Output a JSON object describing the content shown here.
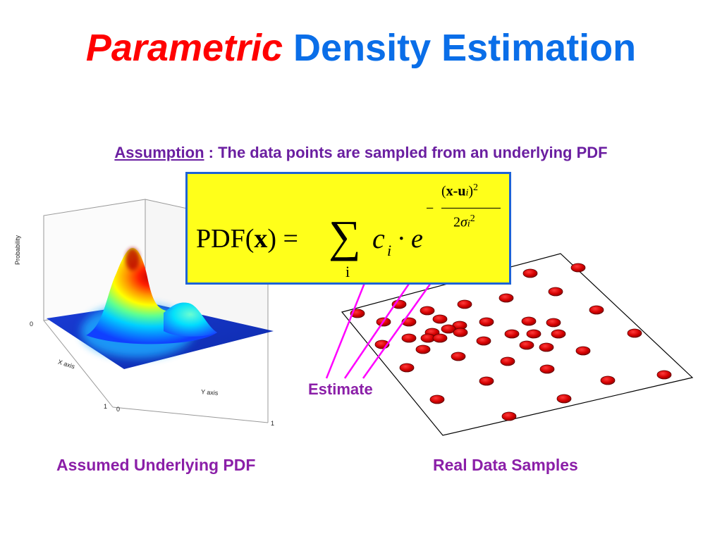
{
  "title": {
    "word1": "Parametric",
    "word2": "Density Estimation"
  },
  "assumption": {
    "label": "Assumption",
    "text": " : The data points are sampled from an underlying PDF"
  },
  "formula": {
    "lhs_pdf": "PDF(",
    "lhs_x": "x",
    "lhs_close": ") =",
    "sum_symbol": "∑",
    "sum_index": "i",
    "coef": "c",
    "coef_sub": "i",
    "dot_e": "· e",
    "exp_minus": "−",
    "exp_num_open": "(",
    "exp_num_x": "x-u",
    "exp_num_sub": "i",
    "exp_num_close": ")",
    "exp_num_pow": "2",
    "exp_den_two": "2",
    "exp_den_sigma": "σ",
    "exp_den_sub": "i",
    "exp_den_pow": "2"
  },
  "plot3d": {
    "z_axis_label": "Probability",
    "x_axis_label": "X axis",
    "y_axis_label": "Y axis",
    "tick_z0": "0",
    "tick_x1": "1",
    "tick_y0": "0",
    "tick_y1": "1"
  },
  "estimate_label": "Estimate",
  "captions": {
    "left": "Assumed Underlying PDF",
    "right": "Real Data Samples"
  },
  "colors": {
    "title_red": "#ff0000",
    "title_blue": "#0a6ee8",
    "purple_text": "#6b1fa1",
    "arrow": "#ff00ff",
    "formula_bg": "#ffff1a",
    "formula_border": "#1d63d6",
    "dot": "#d40000"
  },
  "data_samples": [
    [
      507,
      445
    ],
    [
      566,
      432
    ],
    [
      606,
      441
    ],
    [
      659,
      432
    ],
    [
      718,
      423
    ],
    [
      788,
      414
    ],
    [
      752,
      388
    ],
    [
      820,
      380
    ],
    [
      544,
      457
    ],
    [
      580,
      457
    ],
    [
      624,
      453
    ],
    [
      652,
      462
    ],
    [
      690,
      457
    ],
    [
      750,
      456
    ],
    [
      785,
      458
    ],
    [
      846,
      440
    ],
    [
      613,
      472
    ],
    [
      636,
      467
    ],
    [
      653,
      472
    ],
    [
      726,
      474
    ],
    [
      757,
      474
    ],
    [
      792,
      474
    ],
    [
      900,
      473
    ],
    [
      580,
      480
    ],
    [
      607,
      480
    ],
    [
      624,
      480
    ],
    [
      686,
      484
    ],
    [
      747,
      490
    ],
    [
      775,
      493
    ],
    [
      542,
      489
    ],
    [
      600,
      496
    ],
    [
      650,
      506
    ],
    [
      720,
      513
    ],
    [
      776,
      524
    ],
    [
      827,
      498
    ],
    [
      577,
      522
    ],
    [
      690,
      541
    ],
    [
      862,
      540
    ],
    [
      942,
      532
    ],
    [
      620,
      567
    ],
    [
      800,
      566
    ],
    [
      722,
      591
    ]
  ]
}
